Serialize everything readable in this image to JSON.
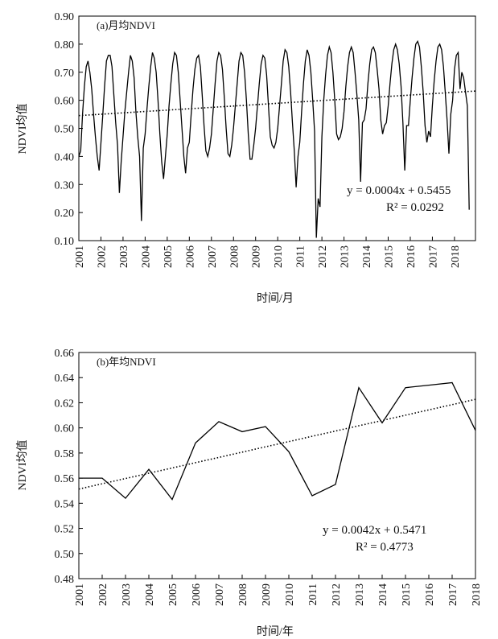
{
  "chart_data": [
    {
      "type": "line",
      "title": "(a)月均NDVI",
      "xlabel": "时间/月",
      "ylabel": "NDVI均值",
      "ylim": [
        0.1,
        0.9
      ],
      "yticks": [
        "0.10",
        "0.20",
        "0.30",
        "0.40",
        "0.50",
        "0.60",
        "0.70",
        "0.80",
        "0.90"
      ],
      "xticks": [
        "2001",
        "2002",
        "2003",
        "2004",
        "2005",
        "2006",
        "2007",
        "2008",
        "2009",
        "2010",
        "2011",
        "2012",
        "2013",
        "2014",
        "2015",
        "2016",
        "2017",
        "2018"
      ],
      "grid": false,
      "series": [
        {
          "style": "solid",
          "x_start": 2001,
          "step": 0.08333,
          "values": [
            0.4,
            0.42,
            0.55,
            0.65,
            0.72,
            0.74,
            0.7,
            0.64,
            0.55,
            0.47,
            0.4,
            0.35,
            0.45,
            0.55,
            0.65,
            0.74,
            0.76,
            0.76,
            0.72,
            0.62,
            0.52,
            0.44,
            0.27,
            0.38,
            0.47,
            0.56,
            0.63,
            0.7,
            0.76,
            0.74,
            0.68,
            0.56,
            0.47,
            0.4,
            0.17,
            0.43,
            0.48,
            0.57,
            0.65,
            0.72,
            0.77,
            0.75,
            0.7,
            0.6,
            0.48,
            0.38,
            0.32,
            0.4,
            0.48,
            0.58,
            0.66,
            0.73,
            0.77,
            0.76,
            0.7,
            0.6,
            0.5,
            0.4,
            0.34,
            0.43,
            0.45,
            0.55,
            0.64,
            0.71,
            0.75,
            0.76,
            0.72,
            0.62,
            0.51,
            0.42,
            0.4,
            0.43,
            0.48,
            0.57,
            0.66,
            0.74,
            0.77,
            0.76,
            0.71,
            0.61,
            0.5,
            0.41,
            0.4,
            0.44,
            0.5,
            0.58,
            0.66,
            0.74,
            0.77,
            0.76,
            0.7,
            0.6,
            0.48,
            0.39,
            0.39,
            0.44,
            0.5,
            0.58,
            0.66,
            0.73,
            0.76,
            0.75,
            0.69,
            0.58,
            0.47,
            0.44,
            0.43,
            0.45,
            0.5,
            0.58,
            0.66,
            0.74,
            0.78,
            0.77,
            0.72,
            0.63,
            0.52,
            0.42,
            0.29,
            0.4,
            0.45,
            0.56,
            0.66,
            0.74,
            0.78,
            0.76,
            0.7,
            0.6,
            0.49,
            0.11,
            0.25,
            0.22,
            0.47,
            0.6,
            0.69,
            0.76,
            0.79,
            0.77,
            0.7,
            0.6,
            0.48,
            0.46,
            0.47,
            0.5,
            0.56,
            0.65,
            0.72,
            0.77,
            0.79,
            0.77,
            0.7,
            0.62,
            0.53,
            0.31,
            0.52,
            0.53,
            0.57,
            0.66,
            0.73,
            0.78,
            0.79,
            0.77,
            0.71,
            0.64,
            0.53,
            0.48,
            0.51,
            0.52,
            0.58,
            0.66,
            0.73,
            0.78,
            0.8,
            0.78,
            0.73,
            0.65,
            0.52,
            0.35,
            0.51,
            0.51,
            0.6,
            0.68,
            0.75,
            0.8,
            0.81,
            0.79,
            0.72,
            0.63,
            0.51,
            0.45,
            0.49,
            0.47,
            0.58,
            0.67,
            0.74,
            0.79,
            0.8,
            0.78,
            0.72,
            0.63,
            0.53,
            0.41,
            0.55,
            0.6,
            0.71,
            0.76,
            0.77,
            0.64,
            0.7,
            0.68,
            0.63,
            0.58,
            0.21
          ]
        },
        {
          "style": "dotted",
          "x": [
            2001,
            2018.95
          ],
          "values": [
            0.5455,
            0.633
          ]
        }
      ],
      "annotations": [
        "y = 0.0004x + 0.5455",
        "R² = 0.0292"
      ]
    },
    {
      "type": "line",
      "title": "(b)年均NDVI",
      "xlabel": "时间/年",
      "ylabel": "NDVI均值",
      "ylim": [
        0.48,
        0.66
      ],
      "yticks": [
        "0.48",
        "0.50",
        "0.52",
        "0.54",
        "0.56",
        "0.58",
        "0.60",
        "0.62",
        "0.64",
        "0.66"
      ],
      "categories": [
        "2001",
        "2002",
        "2003",
        "2004",
        "2005",
        "2006",
        "2007",
        "2008",
        "2009",
        "2010",
        "2011",
        "2012",
        "2013",
        "2014",
        "2015",
        "2016",
        "2017",
        "2018"
      ],
      "grid": false,
      "series": [
        {
          "style": "solid",
          "values": [
            0.56,
            0.56,
            0.544,
            0.567,
            0.543,
            0.588,
            0.605,
            0.597,
            0.601,
            0.581,
            0.546,
            0.555,
            0.632,
            0.604,
            0.632,
            0.634,
            0.636,
            0.598
          ]
        },
        {
          "style": "dotted",
          "values": [
            0.5513,
            0.5555,
            0.5597,
            0.5639,
            0.5681,
            0.5723,
            0.5765,
            0.5807,
            0.5849,
            0.5891,
            0.5933,
            0.5975,
            0.6017,
            0.6059,
            0.6101,
            0.6143,
            0.6185,
            0.6227
          ]
        }
      ],
      "annotations": [
        "y = 0.0042x + 0.5471",
        "R² = 0.4773"
      ]
    }
  ]
}
